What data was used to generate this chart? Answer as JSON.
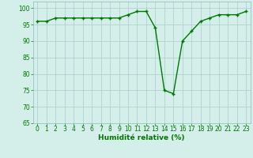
{
  "x": [
    0,
    1,
    2,
    3,
    4,
    5,
    6,
    7,
    8,
    9,
    10,
    11,
    12,
    13,
    14,
    15,
    16,
    17,
    18,
    19,
    20,
    21,
    22,
    23
  ],
  "y": [
    96,
    96,
    97,
    97,
    97,
    97,
    97,
    97,
    97,
    97,
    98,
    99,
    99,
    94,
    75,
    74,
    90,
    93,
    96,
    97,
    98,
    98,
    98,
    99
  ],
  "line_color": "#007700",
  "marker": "+",
  "marker_color": "#007700",
  "bg_color": "#d4eeea",
  "grid_color": "#aacccc",
  "xlabel": "Humidité relative (%)",
  "xlabel_color": "#007700",
  "tick_label_color": "#007700",
  "ylim": [
    65,
    102
  ],
  "yticks": [
    65,
    70,
    75,
    80,
    85,
    90,
    95,
    100
  ],
  "xlim": [
    -0.5,
    23.5
  ],
  "xticks": [
    0,
    1,
    2,
    3,
    4,
    5,
    6,
    7,
    8,
    9,
    10,
    11,
    12,
    13,
    14,
    15,
    16,
    17,
    18,
    19,
    20,
    21,
    22,
    23
  ],
  "linewidth": 1.0,
  "markersize": 3.5,
  "tick_fontsize": 5.5,
  "xlabel_fontsize": 6.5
}
